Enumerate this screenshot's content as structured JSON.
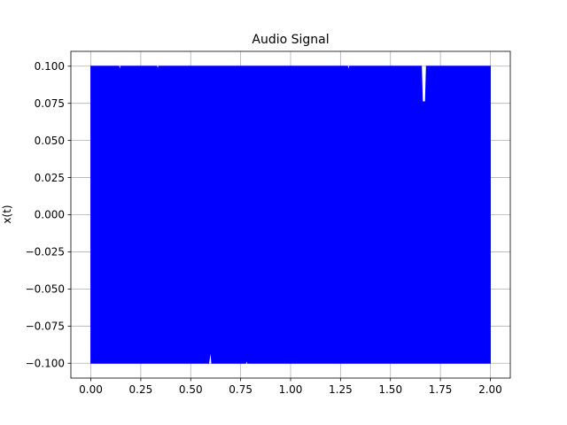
{
  "chart_data": {
    "type": "line",
    "title": "Audio Signal",
    "xlabel": "",
    "ylabel": "x(t)",
    "xlim": [
      -0.1,
      2.1
    ],
    "ylim": [
      -0.11,
      0.11
    ],
    "xticks": [
      0.0,
      0.25,
      0.5,
      0.75,
      1.0,
      1.25,
      1.5,
      1.75,
      2.0
    ],
    "xtick_labels": [
      "0.00",
      "0.25",
      "0.50",
      "0.75",
      "1.00",
      "1.25",
      "1.50",
      "1.75",
      "2.00"
    ],
    "yticks": [
      -0.1,
      -0.075,
      -0.05,
      -0.025,
      0.0,
      0.025,
      0.05,
      0.075,
      0.1
    ],
    "ytick_labels": [
      "−0.100",
      "−0.075",
      "−0.050",
      "−0.025",
      "0.000",
      "0.025",
      "0.050",
      "0.075",
      "0.100"
    ],
    "grid": true,
    "series": [
      {
        "color": "#0000ff",
        "x_range": [
          0.0,
          2.0
        ],
        "amplitude": 0.1,
        "upper_envelope": [
          [
            0.0,
            0.1
          ],
          [
            0.14,
            0.1
          ],
          [
            0.145,
            0.097
          ],
          [
            0.15,
            0.1
          ],
          [
            0.33,
            0.1
          ],
          [
            0.335,
            0.098
          ],
          [
            0.34,
            0.1
          ],
          [
            1.285,
            0.1
          ],
          [
            1.29,
            0.097
          ],
          [
            1.295,
            0.1
          ],
          [
            1.655,
            0.1
          ],
          [
            1.66,
            0.076
          ],
          [
            1.675,
            0.076
          ],
          [
            1.68,
            0.1
          ],
          [
            2.0,
            0.1
          ]
        ],
        "lower_envelope": [
          [
            0.0,
            -0.1
          ],
          [
            0.59,
            -0.1
          ],
          [
            0.6,
            -0.091
          ],
          [
            0.605,
            -0.1
          ],
          [
            0.775,
            -0.1
          ],
          [
            0.78,
            -0.098
          ],
          [
            0.785,
            -0.1
          ],
          [
            2.0,
            -0.1
          ]
        ]
      }
    ]
  }
}
